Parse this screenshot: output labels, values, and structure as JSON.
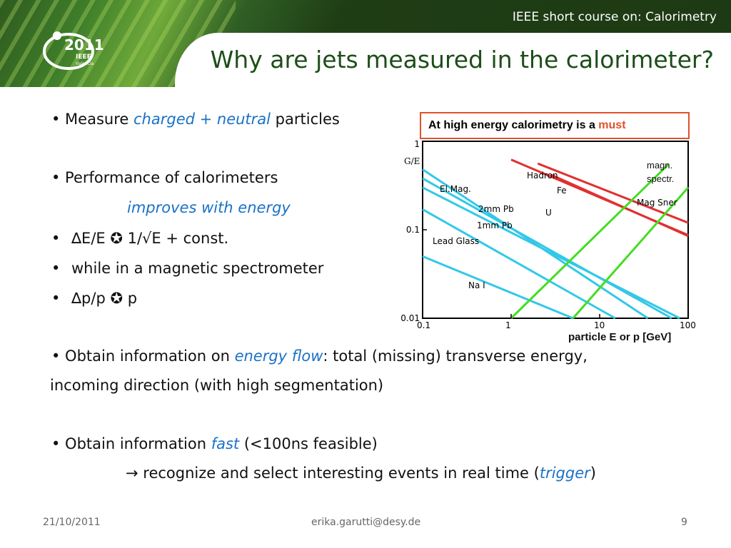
{
  "header": {
    "course_title": "IEEE short course on: Calorimetry",
    "logo_year": "2011",
    "logo_line1": "IEEE",
    "logo_line2": "Valencia",
    "slide_title": "Why are jets measured in the calorimeter?"
  },
  "bullets": {
    "b1_pre": "• Measure ",
    "b1_em": "charged + neutral",
    "b1_post": " particles",
    "b2": "• Performance of calorimeters",
    "b2_em": "improves with energy",
    "b3_sym": "•",
    "b3": "∆E/E ✪ 1/√E + const.",
    "b4_sym": "•",
    "b4": "while in a magnetic spectrometer",
    "b5_sym": "•",
    "b5": "∆p/p ✪ p",
    "b6_pre": "• Obtain information on ",
    "b6_em": "energy flow",
    "b6_post": ": total (missing) transverse energy,",
    "b6_line2": "incoming direction (with high segmentation)",
    "b7_pre": "• Obtain information ",
    "b7_em": "fast",
    "b7_post": " (<100ns feasible)",
    "b8_pre": "→ recognize and select interesting events in real time (",
    "b8_em": "trigger",
    "b8_post": ")"
  },
  "callout": {
    "pre": "At high energy calorimetry is a ",
    "em": "must"
  },
  "notes": {
    "magn_line1": "magn.",
    "magn_line2": "spectr.",
    "xlabel": "particle E or p  [GeV]"
  },
  "chart_data": {
    "type": "line",
    "xscale": "log",
    "yscale": "log",
    "xlim": [
      0.1,
      100
    ],
    "ylim": [
      0.01,
      1
    ],
    "ylabel": "G/E",
    "xticks": [
      "0.1",
      "1",
      "10",
      "100"
    ],
    "yticks": [
      "0.01",
      "0.1",
      "1"
    ],
    "series": [
      {
        "name": "Hadron",
        "color": "#e03030",
        "points": [
          [
            1.0,
            0.62
          ],
          [
            100,
            0.087
          ]
        ]
      },
      {
        "name": "Fe",
        "color": "#e03030",
        "points": [
          [
            2.0,
            0.56
          ],
          [
            100,
            0.12
          ]
        ]
      },
      {
        "name": "U",
        "color": "#e03030",
        "points": [
          [
            2.8,
            0.42
          ],
          [
            100,
            0.085
          ]
        ]
      },
      {
        "name": "El.Mag.",
        "color": "#33c8e8",
        "points": [
          [
            0.1,
            0.48
          ],
          [
            35,
            0.01
          ]
        ]
      },
      {
        "name": "2mm Pb",
        "color": "#33c8e8",
        "points": [
          [
            0.1,
            0.38
          ],
          [
            65,
            0.01
          ]
        ]
      },
      {
        "name": "1mm Pb",
        "color": "#33c8e8",
        "points": [
          [
            0.1,
            0.3
          ],
          [
            80,
            0.01
          ]
        ]
      },
      {
        "name": "Lead Glass",
        "color": "#33c8e8",
        "points": [
          [
            0.1,
            0.17
          ],
          [
            15,
            0.01
          ]
        ]
      },
      {
        "name": "Na I",
        "color": "#33c8e8",
        "points": [
          [
            0.1,
            0.05
          ],
          [
            5,
            0.01
          ]
        ]
      },
      {
        "name": "magn. spectr.",
        "color": "#44dd22",
        "points": [
          [
            1.0,
            0.01
          ],
          [
            60,
            0.55
          ]
        ]
      },
      {
        "name": "Mag Sner",
        "color": "#44dd22",
        "points": [
          [
            5,
            0.01
          ],
          [
            100,
            0.3
          ]
        ]
      }
    ]
  },
  "footer": {
    "date": "21/10/2011",
    "email": "erika.garutti@desy.de",
    "page": "9"
  }
}
